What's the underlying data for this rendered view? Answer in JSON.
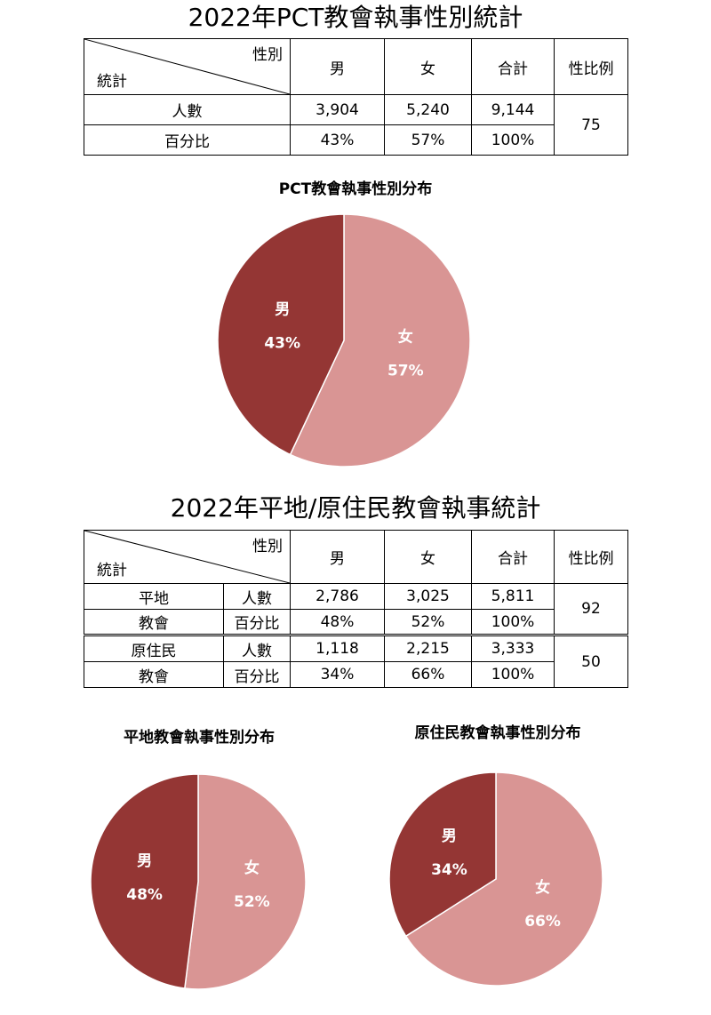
{
  "table1": {
    "title": "2022年PCT教會執事性別統計",
    "corner_top": "性別",
    "corner_bottom": "統計",
    "headers": [
      "男",
      "女",
      "合計",
      "性比例"
    ],
    "rows": [
      {
        "label": "人數",
        "male": "3,904",
        "female": "5,240",
        "total": "9,144"
      },
      {
        "label": "百分比",
        "male": "43%",
        "female": "57%",
        "total": "100%"
      }
    ],
    "sex_ratio": "75"
  },
  "table2": {
    "title": "2022年平地/原住民教會執事統計",
    "corner_top": "性別",
    "corner_bottom": "統計",
    "headers": [
      "男",
      "女",
      "合計",
      "性比例"
    ],
    "groups": [
      {
        "name_line1": "平地",
        "name_line2": "教會",
        "sex_ratio": "92",
        "rows": [
          {
            "label": "人數",
            "male": "2,786",
            "female": "3,025",
            "total": "5,811"
          },
          {
            "label": "百分比",
            "male": "48%",
            "female": "52%",
            "total": "100%"
          }
        ]
      },
      {
        "name_line1": "原住民",
        "name_line2": "教會",
        "sex_ratio": "50",
        "rows": [
          {
            "label": "人數",
            "male": "1,118",
            "female": "2,215",
            "total": "3,333"
          },
          {
            "label": "百分比",
            "male": "34%",
            "female": "66%",
            "total": "100%"
          }
        ]
      }
    ]
  },
  "colors": {
    "male": "#943634",
    "female": "#d99594"
  },
  "chart_data": [
    {
      "type": "pie",
      "title": "PCT教會執事性別分布",
      "categories": [
        "男",
        "女"
      ],
      "values": [
        43,
        57
      ],
      "labels": [
        "43%",
        "57%"
      ]
    },
    {
      "type": "pie",
      "title": "平地教會執事性別分布",
      "categories": [
        "男",
        "女"
      ],
      "values": [
        48,
        52
      ],
      "labels": [
        "48%",
        "52%"
      ]
    },
    {
      "type": "pie",
      "title": "原住民教會執事性別分布",
      "categories": [
        "男",
        "女"
      ],
      "values": [
        34,
        66
      ],
      "labels": [
        "34%",
        "66%"
      ]
    }
  ]
}
